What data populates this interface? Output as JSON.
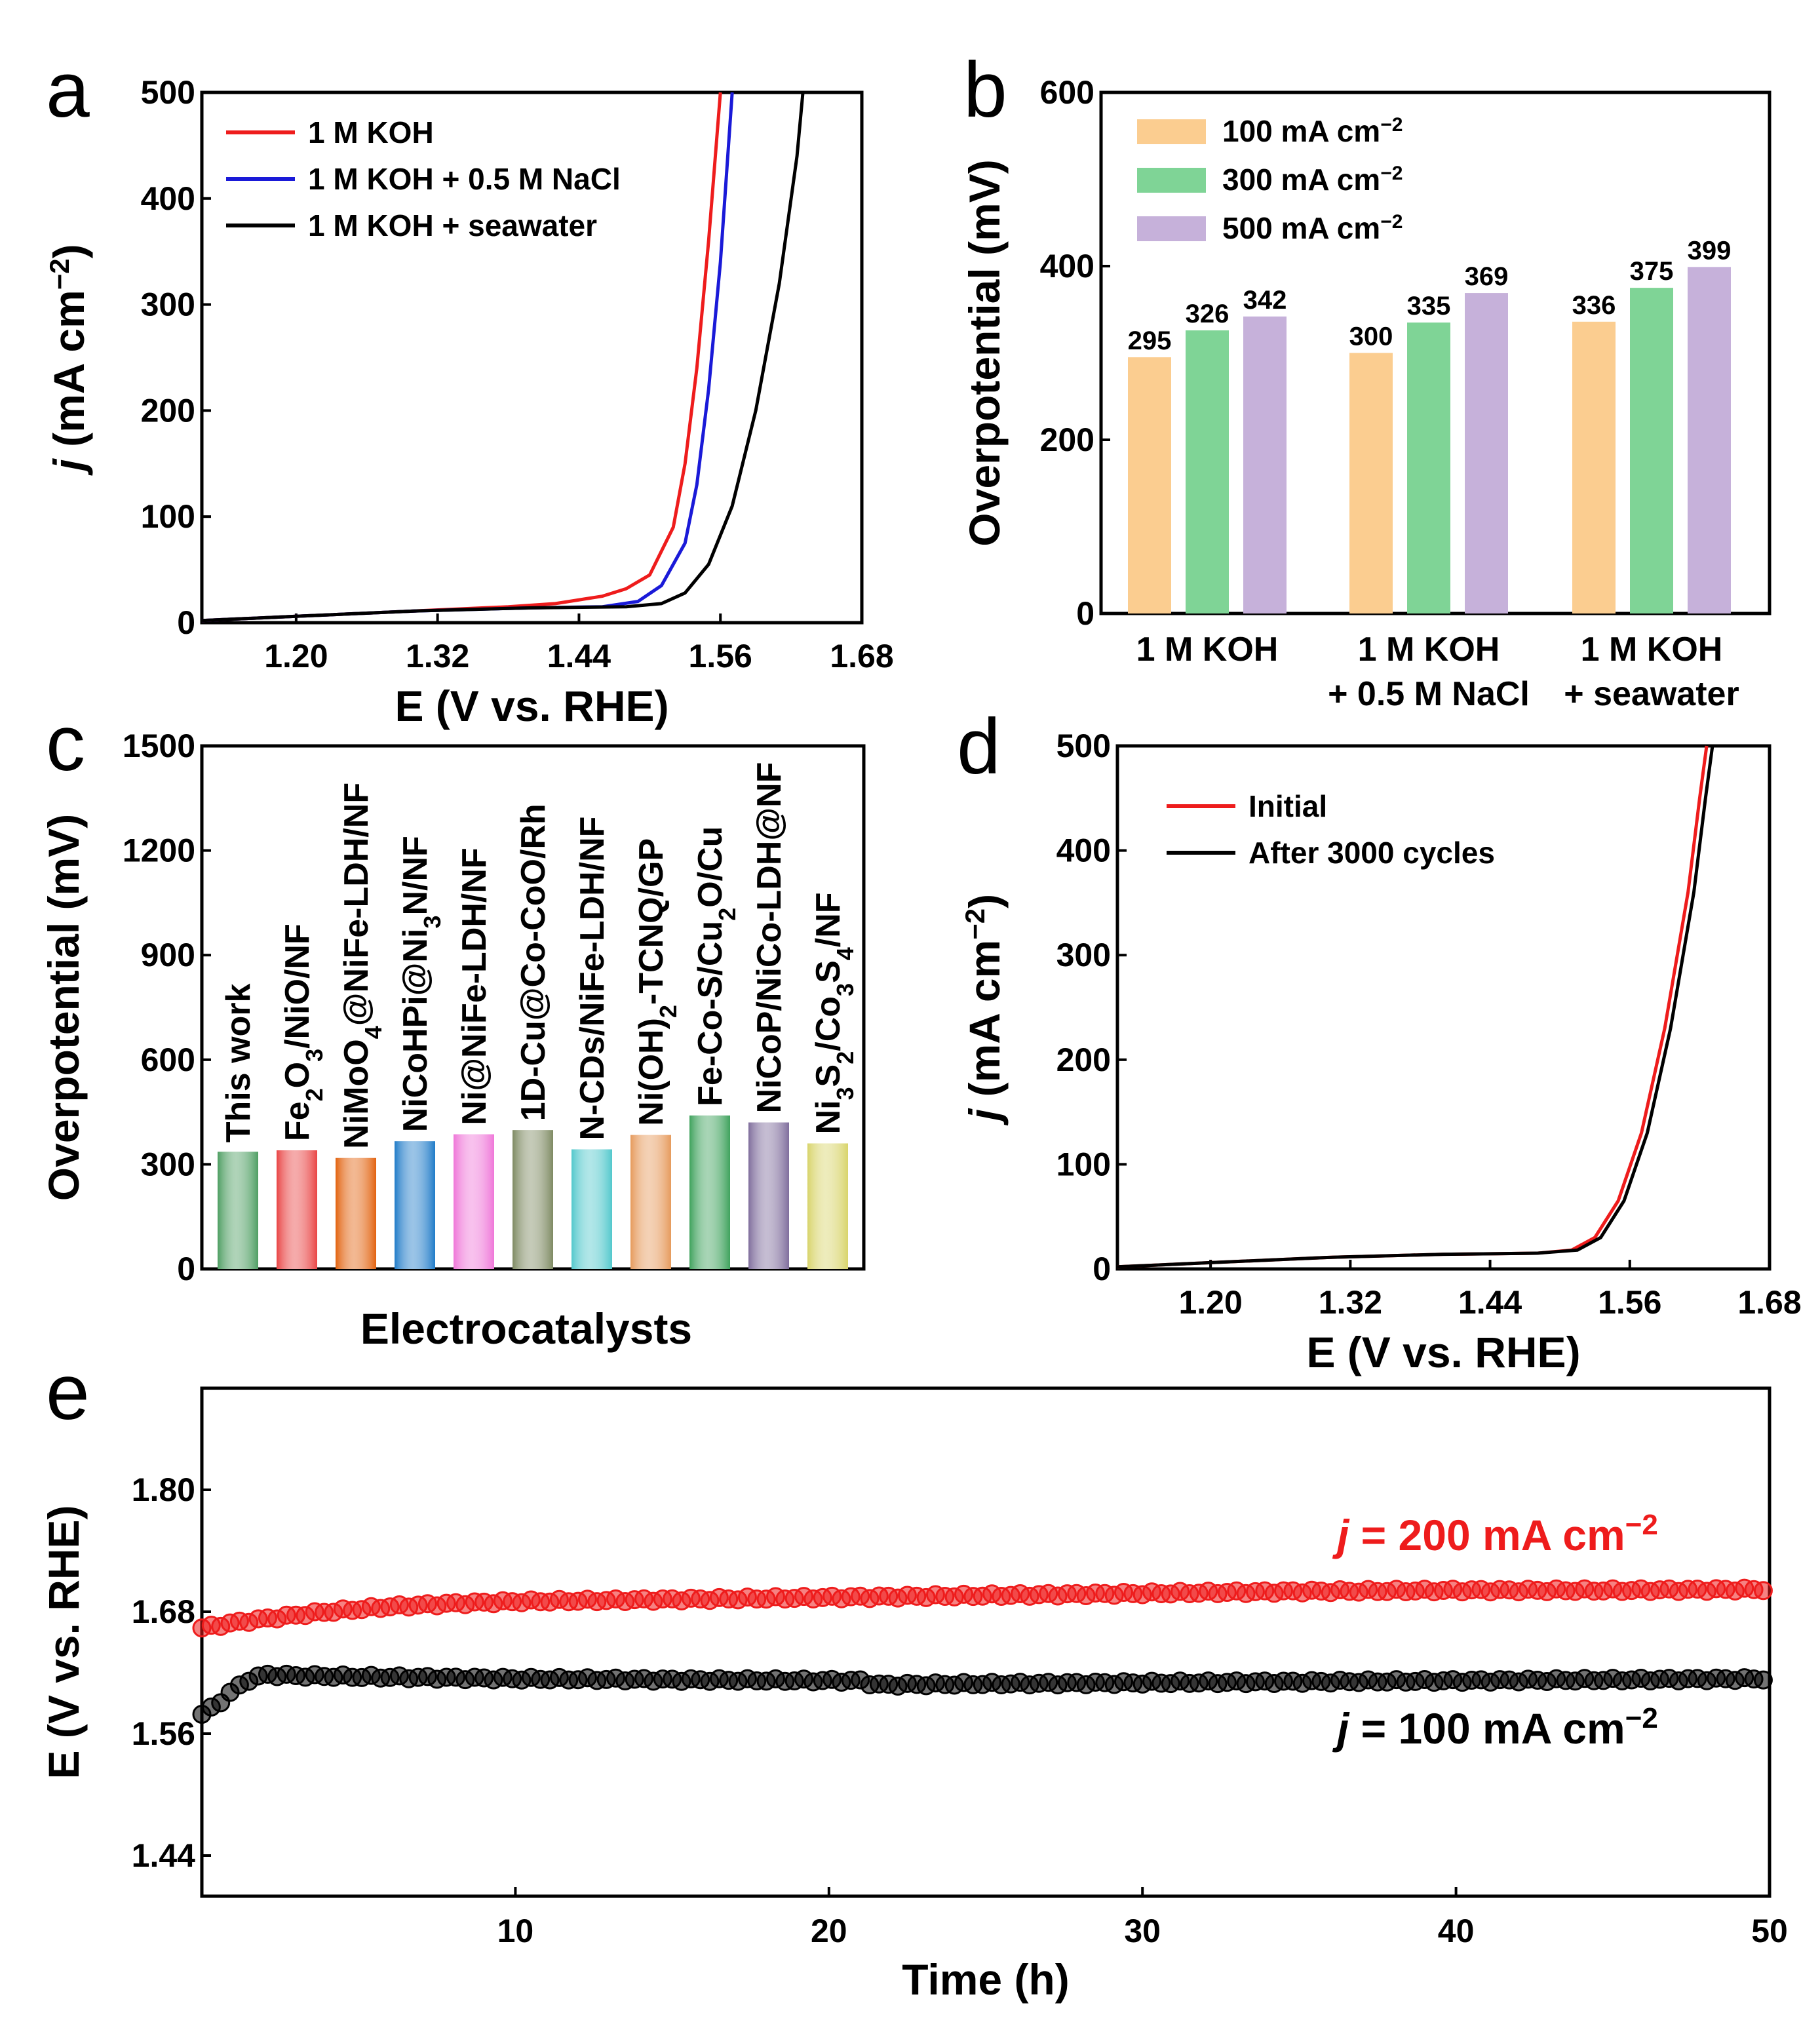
{
  "colors": {
    "red": "#ee1c1c",
    "blue": "#1a1ad8",
    "black": "#000000",
    "orange": "#fbcd90",
    "green": "#7fd496",
    "purple": "#c6b1da"
  },
  "panels": {
    "a": {
      "label": "a",
      "chart_data": {
        "type": "line",
        "xlabel": "E (V vs. RHE)",
        "ylabel_italic": "j",
        "ylabel_rest": " (mA cm",
        "ylabel_sup": "−2",
        "ylabel_end": ")",
        "xlim": [
          1.12,
          1.68
        ],
        "ylim": [
          0,
          500
        ],
        "xticks": [
          "1.20",
          "1.32",
          "1.44",
          "1.56",
          "1.68"
        ],
        "yticks": [
          "0",
          "100",
          "200",
          "300",
          "400",
          "500"
        ],
        "series": [
          {
            "name": "1 M KOH",
            "color": "red",
            "x": [
              1.12,
              1.2,
              1.3,
              1.38,
              1.42,
              1.46,
              1.48,
              1.5,
              1.52,
              1.53,
              1.54,
              1.55,
              1.56
            ],
            "y": [
              2,
              6,
              11,
              15,
              18,
              25,
              32,
              45,
              90,
              150,
              240,
              360,
              500
            ]
          },
          {
            "name": "1 M KOH + 0.5 M NaCl",
            "color": "blue",
            "x": [
              1.12,
              1.2,
              1.3,
              1.4,
              1.46,
              1.49,
              1.51,
              1.53,
              1.54,
              1.55,
              1.56,
              1.57
            ],
            "y": [
              2,
              6,
              11,
              14,
              15,
              20,
              35,
              75,
              130,
              220,
              340,
              500
            ]
          },
          {
            "name": "1 M KOH + seawater",
            "color": "black",
            "x": [
              1.12,
              1.2,
              1.3,
              1.4,
              1.48,
              1.51,
              1.53,
              1.55,
              1.57,
              1.59,
              1.61,
              1.625,
              1.63
            ],
            "y": [
              2,
              6,
              11,
              14,
              15,
              18,
              28,
              55,
              110,
              200,
              320,
              440,
              500
            ]
          }
        ]
      }
    },
    "b": {
      "label": "b",
      "chart_data": {
        "type": "bar",
        "ylabel": "Overpotential (mV)",
        "ylim": [
          0,
          600
        ],
        "yticks": [
          "0",
          "200",
          "400",
          "600"
        ],
        "categories": [
          [
            "1 M KOH"
          ],
          [
            "1 M KOH",
            "+ 0.5 M NaCl"
          ],
          [
            "1 M KOH",
            "+ seawater"
          ]
        ],
        "series": [
          {
            "name": "100  mA cm",
            "sup": "−2",
            "color": "orange",
            "values": [
              295,
              300,
              336
            ]
          },
          {
            "name": "300 mA cm",
            "sup": "−2",
            "color": "green",
            "values": [
              326,
              335,
              375
            ]
          },
          {
            "name": "500 mA cm",
            "sup": "−2",
            "color": "purple",
            "values": [
              342,
              369,
              399
            ]
          }
        ]
      }
    },
    "c": {
      "label": "c",
      "chart_data": {
        "type": "bar",
        "ylabel": "Overpotential (mV)",
        "xlabel": "Electrocatalysts",
        "ylim": [
          0,
          1500
        ],
        "yticks": [
          "0",
          "300",
          "600",
          "900",
          "1200",
          "1500"
        ],
        "bars": [
          {
            "parts": [
              [
                "This work",
                ""
              ]
            ],
            "value": 336,
            "color": "#4e9e62"
          },
          {
            "parts": [
              [
                "Fe",
                ""
              ],
              [
                "2",
                "sub"
              ],
              [
                "O",
                ""
              ],
              [
                "3",
                "sub"
              ],
              [
                "/NiO/NF",
                ""
              ]
            ],
            "value": 340,
            "color": "#e94444"
          },
          {
            "parts": [
              [
                "NiMoO",
                ""
              ],
              [
                "4",
                "sub"
              ],
              [
                "@NiFe-LDH/NF",
                ""
              ]
            ],
            "value": 318,
            "color": "#e2620e"
          },
          {
            "parts": [
              [
                "NiCoHPi@Ni",
                ""
              ],
              [
                "3",
                "sub"
              ],
              [
                "N/NF",
                ""
              ]
            ],
            "value": 366,
            "color": "#1f7bc8"
          },
          {
            "parts": [
              [
                "Ni@NiFe-LDH/NF",
                ""
              ]
            ],
            "value": 386,
            "color": "#ef76d8"
          },
          {
            "parts": [
              [
                "1D-Cu@Co-CoO/Rh",
                ""
              ]
            ],
            "value": 398,
            "color": "#7e8a62"
          },
          {
            "parts": [
              [
                "N-CDs/NiFe-LDH/NF",
                ""
              ]
            ],
            "value": 343,
            "color": "#52c8cc"
          },
          {
            "parts": [
              [
                "Ni(OH)",
                ""
              ],
              [
                "2",
                "sub"
              ],
              [
                "-TCNQ/GP",
                ""
              ]
            ],
            "value": 384,
            "color": "#e69a5c"
          },
          {
            "parts": [
              [
                "Fe-Co-S/Cu",
                ""
              ],
              [
                "2",
                "sub"
              ],
              [
                "O/Cu",
                ""
              ]
            ],
            "value": 440,
            "color": "#3ea25c"
          },
          {
            "parts": [
              [
                "NiCoP/NiCo-LDH@NF",
                ""
              ]
            ],
            "value": 420,
            "color": "#7f6d9c"
          },
          {
            "parts": [
              [
                "Ni",
                ""
              ],
              [
                "3",
                "sub"
              ],
              [
                "S",
                ""
              ],
              [
                "2",
                "sub"
              ],
              [
                "/Co",
                ""
              ],
              [
                "3",
                "sub"
              ],
              [
                "S",
                ""
              ],
              [
                "4",
                "sub"
              ],
              [
                "/NF",
                ""
              ]
            ],
            "value": 360,
            "color": "#d8d46a"
          }
        ]
      }
    },
    "d": {
      "label": "d",
      "chart_data": {
        "type": "line",
        "xlabel": "E (V vs. RHE)",
        "ylabel_italic": "j",
        "ylabel_rest": " (mA cm",
        "ylabel_sup": "−2",
        "ylabel_end": ")",
        "xlim": [
          1.12,
          1.68
        ],
        "ylim": [
          0,
          500
        ],
        "xticks": [
          "1.20",
          "1.32",
          "1.44",
          "1.56",
          "1.68"
        ],
        "yticks": [
          "0",
          "100",
          "200",
          "300",
          "400",
          "500"
        ],
        "series": [
          {
            "name": "Initial",
            "color": "red",
            "x": [
              1.12,
              1.2,
              1.3,
              1.4,
              1.48,
              1.51,
              1.53,
              1.55,
              1.57,
              1.59,
              1.61,
              1.62,
              1.626
            ],
            "y": [
              2,
              6,
              11,
              14,
              15,
              18,
              30,
              65,
              130,
              230,
              360,
              450,
              500
            ]
          },
          {
            "name": "After 3000 cycles",
            "color": "black",
            "x": [
              1.12,
              1.2,
              1.3,
              1.4,
              1.48,
              1.515,
              1.535,
              1.555,
              1.575,
              1.595,
              1.615,
              1.625,
              1.631
            ],
            "y": [
              2,
              6,
              11,
              14,
              15,
              18,
              30,
              65,
              130,
              230,
              360,
              450,
              500
            ]
          }
        ]
      }
    },
    "e": {
      "label": "e",
      "chart_data": {
        "type": "scatter",
        "xlabel": "Time (h)",
        "ylabel": "E (V vs. RHE)",
        "xlim": [
          0,
          50
        ],
        "ylim": [
          1.4,
          1.9
        ],
        "xticks": [
          "10",
          "20",
          "30",
          "40",
          "50"
        ],
        "yticks": [
          "1.44",
          "1.56",
          "1.68",
          "1.80"
        ],
        "series": [
          {
            "name": "200",
            "color": "red",
            "label_pre": " = 200 mA cm",
            "sup": "−2",
            "t": [
              0,
              1,
              2,
              4,
              6,
              8,
              10,
              15,
              20,
              25,
              30,
              35,
              40,
              45,
              50
            ],
            "v": [
              1.664,
              1.669,
              1.673,
              1.68,
              1.685,
              1.688,
              1.69,
              1.692,
              1.694,
              1.696,
              1.698,
              1.7,
              1.701,
              1.701,
              1.702
            ]
          },
          {
            "name": "100",
            "color": "black",
            "label_pre": " = 100 mA cm",
            "sup": "−2",
            "t": [
              0,
              0.5,
              1,
              1.5,
              2,
              3,
              5,
              10,
              15,
              21,
              21.5,
              25,
              30,
              35,
              40,
              45,
              50
            ],
            "v": [
              1.579,
              1.589,
              1.603,
              1.613,
              1.618,
              1.617,
              1.616,
              1.614,
              1.613,
              1.612,
              1.608,
              1.609,
              1.61,
              1.611,
              1.612,
              1.613,
              1.614
            ]
          }
        ]
      }
    }
  }
}
